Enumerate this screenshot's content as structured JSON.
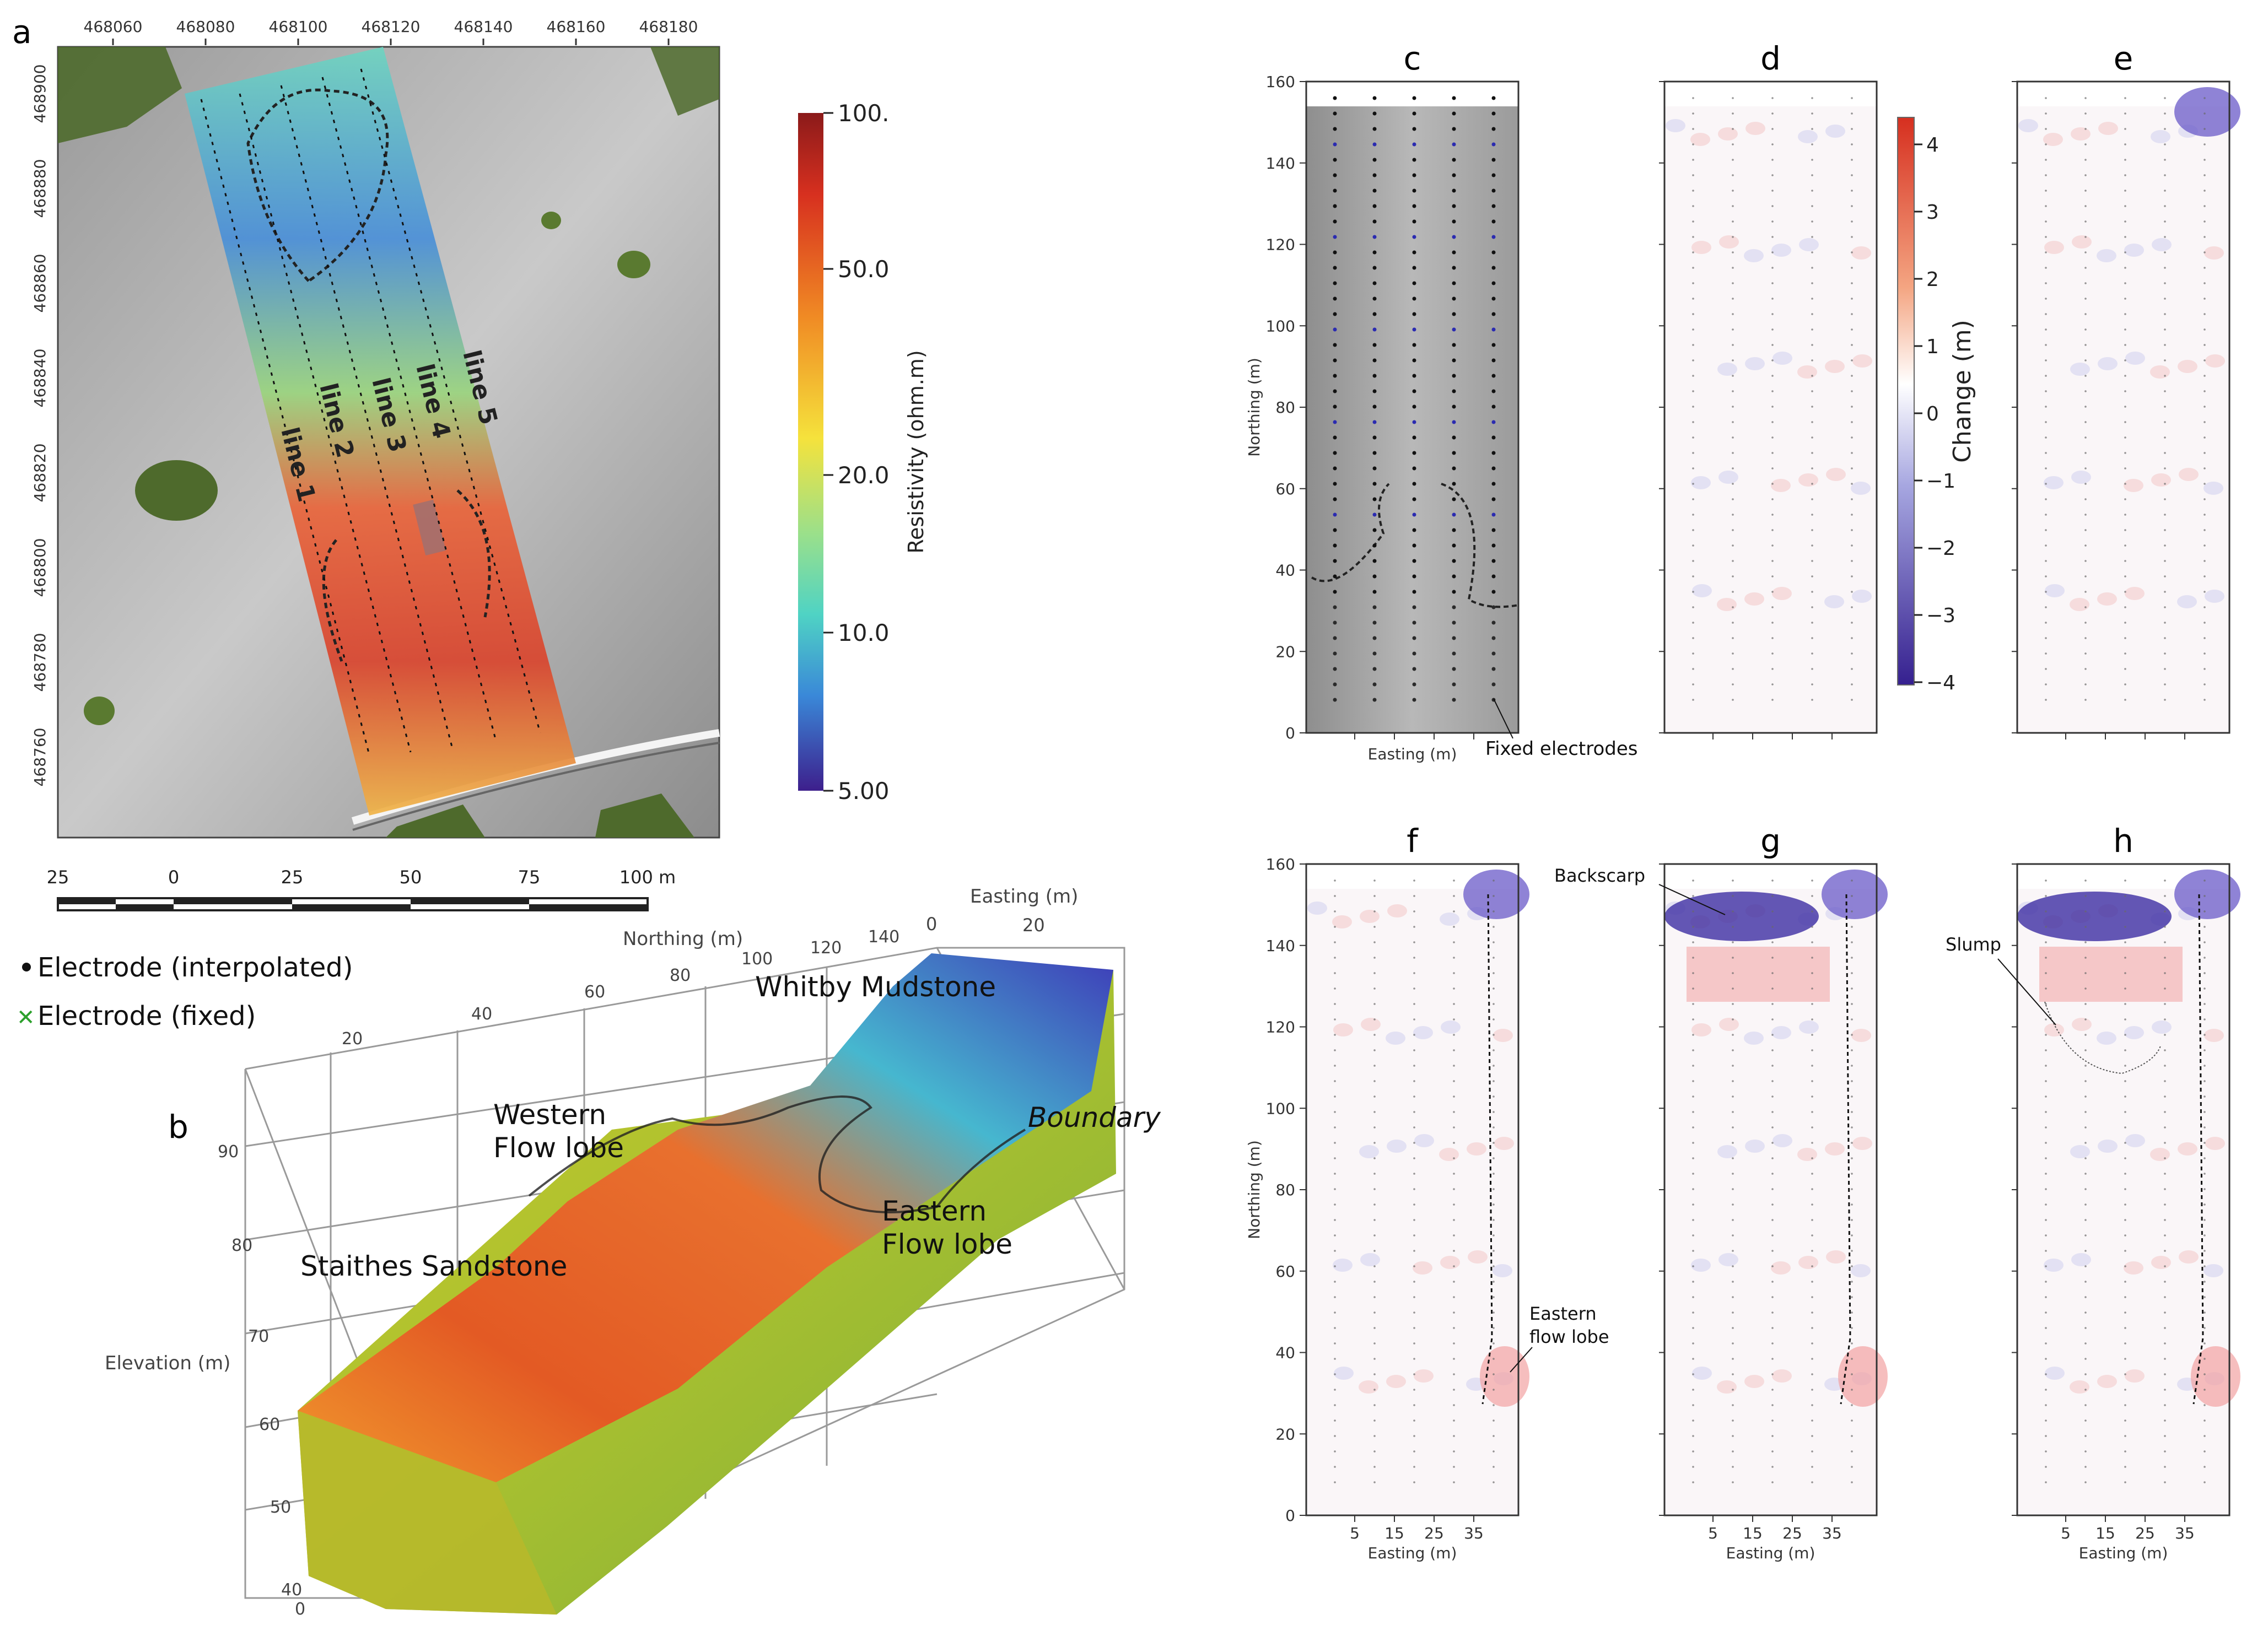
{
  "panel_labels": {
    "a": "a",
    "b": "b",
    "c": "c",
    "d": "d",
    "e": "e",
    "f": "f",
    "g": "g",
    "h": "h"
  },
  "panel_a": {
    "top_ticks": [
      "468060",
      "468080",
      "468100",
      "468120",
      "468140",
      "468160",
      "468180"
    ],
    "left_ticks": [
      "468900",
      "468880",
      "468860",
      "468840",
      "468820",
      "468800",
      "468780",
      "468760"
    ],
    "line_labels": [
      "line 1",
      "line 2",
      "line 3",
      "line 4",
      "line 5"
    ],
    "scalebar_labels": [
      "25",
      "0",
      "25",
      "50",
      "75",
      "100 m"
    ],
    "colorbar_ticks": [
      "100.",
      "50.0",
      "20.0",
      "10.0",
      "5.00"
    ],
    "colorbar_label": "Resistivity (ohm.m)",
    "legend": {
      "interpolated": "Electrode (interpolated)",
      "fixed": "Electrode (fixed)"
    }
  },
  "panel_b": {
    "easting_label": "Easting (m)",
    "easting_ticks": [
      "0",
      "20"
    ],
    "northing_label": "Northing (m)",
    "northing_ticks": [
      "20",
      "40",
      "60",
      "80",
      "100",
      "120",
      "140"
    ],
    "elevation_label": "Elevation (m)",
    "elevation_ticks": [
      "90",
      "80",
      "70",
      "60",
      "50",
      "40",
      "0"
    ],
    "annotations": {
      "whitby": "Whitby Mudstone",
      "western1": "Western",
      "western2": "Flow lobe",
      "boundary": "Boundary",
      "eastern1": "Eastern",
      "eastern2": "Flow lobe",
      "staithes": "Staithes Sandstone"
    }
  },
  "maps": {
    "northing_ticks": [
      "160",
      "140",
      "120",
      "100",
      "80",
      "60",
      "40",
      "20",
      "0"
    ],
    "northing_label": "Northing (m)",
    "easting_label": "Easting (m)",
    "easting_ticks": [
      "5",
      "15",
      "25",
      "35"
    ],
    "annotations": {
      "fixed": "Fixed electrodes",
      "backscarp": "Backscarp",
      "slump": "Slump",
      "eastern1": "Eastern",
      "eastern2": "flow lobe"
    }
  },
  "change_colorbar": {
    "ticks": [
      "4",
      "3",
      "2",
      "1",
      "0",
      "−1",
      "−2",
      "−3",
      "−4"
    ],
    "label": "Change (m)"
  },
  "colors": {
    "electrode_fixed": "#2ca02c",
    "electrode_interp": "#000000",
    "negative": "#3b2fa5",
    "positive": "#e34a33"
  }
}
